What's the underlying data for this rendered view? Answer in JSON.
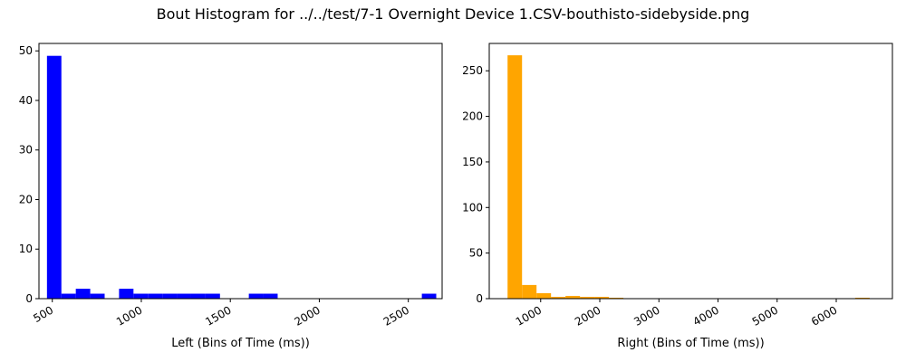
{
  "figure": {
    "title": "Bout Histogram for ../../test/7-1 Overnight Device 1.CSV-bouthisto-sidebyside.png"
  },
  "chart_data": [
    {
      "type": "bar",
      "name": "left-histogram",
      "color": "#0000ff",
      "xlabel": "Left (Bins of Time (ms))",
      "ylabel": "",
      "xlim": [
        425,
        2690
      ],
      "ylim": [
        0,
        51.5
      ],
      "xticks": [
        500,
        1000,
        1500,
        2000,
        2500
      ],
      "yticks": [
        0,
        10,
        20,
        30,
        40,
        50
      ],
      "bin_edges": [
        470,
        551,
        632,
        713,
        794,
        875,
        956,
        1037,
        1118,
        1199,
        1280,
        1361,
        1442,
        1523,
        1604,
        1685,
        1766,
        1847,
        1928,
        2009,
        2090,
        2171,
        2252,
        2333,
        2414,
        2495,
        2576,
        2657
      ],
      "counts": [
        49,
        1,
        2,
        1,
        0,
        2,
        1,
        1,
        1,
        1,
        1,
        1,
        0,
        0,
        1,
        1,
        0,
        0,
        0,
        0,
        0,
        0,
        0,
        0,
        0,
        0,
        1
      ]
    },
    {
      "type": "bar",
      "name": "right-histogram",
      "color": "#ffa500",
      "xlabel": "Right (Bins of Time (ms))",
      "ylabel": "",
      "xlim": [
        130,
        6950
      ],
      "ylim": [
        0,
        280
      ],
      "xticks": [
        1000,
        2000,
        3000,
        4000,
        5000,
        6000
      ],
      "yticks": [
        0,
        50,
        100,
        150,
        200,
        250
      ],
      "bin_edges": [
        440,
        685,
        930,
        1175,
        1420,
        1665,
        1910,
        2155,
        2400,
        2645,
        2890,
        3135,
        3380,
        3625,
        3870,
        4115,
        4360,
        4605,
        4850,
        5095,
        5340,
        5585,
        5830,
        6075,
        6320,
        6565
      ],
      "counts": [
        267,
        15,
        6,
        2,
        3,
        2,
        2,
        1,
        0,
        0,
        0,
        0,
        0,
        0,
        0,
        0,
        0,
        0,
        0,
        0,
        0,
        0,
        0,
        0,
        1
      ]
    }
  ]
}
